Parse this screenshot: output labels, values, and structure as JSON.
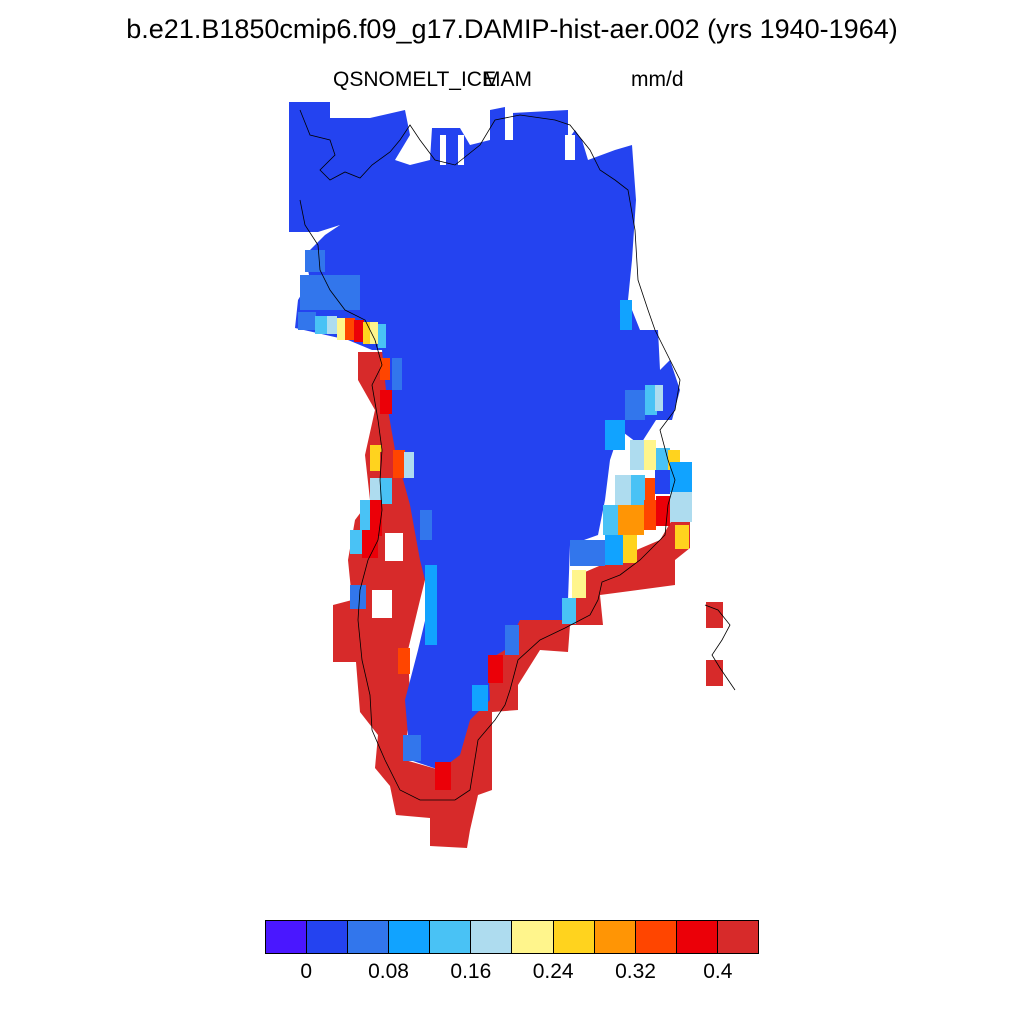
{
  "title": "b.e21.B1850cmip6.f09_g17.DAMIP-hist-aer.002 (yrs 1940-1964)",
  "variable": "QSNOMELT_ICE",
  "season": "MAM",
  "units": "mm/d",
  "colorbar": {
    "colors": [
      "#4a17ff",
      "#2443f0",
      "#3276ec",
      "#11a3ff",
      "#49c2f5",
      "#aedcef",
      "#fff58c",
      "#ffd31e",
      "#ff9505",
      "#ff4500",
      "#eb0008",
      "#d72a2a"
    ],
    "labels": [
      "0",
      "0.08",
      "0.16",
      "0.24",
      "0.32",
      "0.4"
    ]
  },
  "map": {
    "region": "Greenland",
    "field_level_colors": {
      "ice_interior": "#2443f0",
      "margin_low": "#3276ec",
      "margin_mid": "#49c2f5",
      "coast_high": "#d72a2a"
    }
  }
}
